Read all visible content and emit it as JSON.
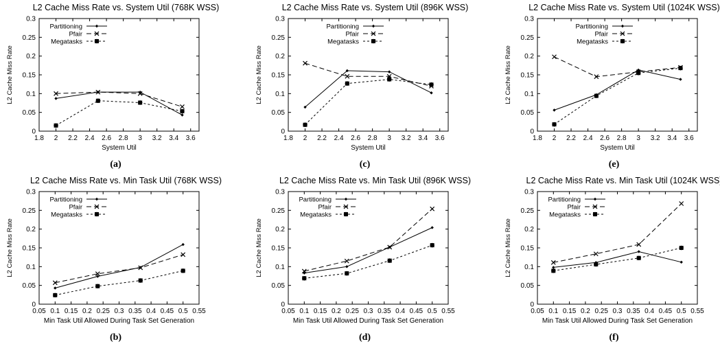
{
  "chart_data": [
    {
      "type": "line",
      "title": "L2 Cache Miss Rate vs. System Util (768K WSS)",
      "caption": "(a)",
      "xlabel": "System Util",
      "ylabel": "L2 Cache Miss Rate",
      "xlim": [
        1.8,
        3.7
      ],
      "ylim": [
        0,
        0.3
      ],
      "xticks": [
        "1.8",
        "2",
        "2.2",
        "2.4",
        "2.6",
        "2.8",
        "3",
        "3.2",
        "3.4",
        "3.6"
      ],
      "yticks": [
        "0",
        "0.05",
        "0.1",
        "0.15",
        "0.2",
        "0.25",
        "0.3"
      ],
      "x": [
        2,
        2.5,
        3,
        3.5
      ],
      "legend": "top-left",
      "series": [
        {
          "name": "Partitioning",
          "values": [
            0.087,
            0.104,
            0.104,
            0.043
          ]
        },
        {
          "name": "Pfair",
          "values": [
            0.1,
            0.104,
            0.1,
            0.065
          ]
        },
        {
          "name": "Megatasks",
          "values": [
            0.015,
            0.081,
            0.076,
            0.053
          ]
        }
      ]
    },
    {
      "type": "line",
      "title": "L2 Cache Miss Rate vs. System Util (896K WSS)",
      "caption": "(c)",
      "xlabel": "System Util",
      "ylabel": "L2 Cache Miss Rate",
      "xlim": [
        1.8,
        3.7
      ],
      "ylim": [
        0,
        0.3
      ],
      "xticks": [
        "1.8",
        "2",
        "2.2",
        "2.4",
        "2.6",
        "2.8",
        "3",
        "3.2",
        "3.4",
        "3.6"
      ],
      "yticks": [
        "0",
        "0.05",
        "0.1",
        "0.15",
        "0.2",
        "0.25",
        "0.3"
      ],
      "x": [
        2,
        2.5,
        3,
        3.5
      ],
      "legend": "top-right",
      "series": [
        {
          "name": "Partitioning",
          "values": [
            0.064,
            0.161,
            0.158,
            0.102
          ]
        },
        {
          "name": "Pfair",
          "values": [
            0.181,
            0.146,
            0.146,
            0.12
          ]
        },
        {
          "name": "Megatasks",
          "values": [
            0.017,
            0.127,
            0.138,
            0.124
          ]
        }
      ]
    },
    {
      "type": "line",
      "title": "L2 Cache Miss Rate vs. System Util (1024K WSS)",
      "caption": "(e)",
      "xlabel": "System Util",
      "ylabel": "L2 Cache Miss Rate",
      "xlim": [
        1.8,
        3.7
      ],
      "ylim": [
        0,
        0.3
      ],
      "xticks": [
        "1.8",
        "2",
        "2.2",
        "2.4",
        "2.6",
        "2.8",
        "3",
        "3.2",
        "3.4",
        "3.6"
      ],
      "yticks": [
        "0",
        "0.05",
        "0.1",
        "0.15",
        "0.2",
        "0.25",
        "0.3"
      ],
      "x": [
        2,
        2.5,
        3,
        3.5
      ],
      "legend": "top-right",
      "series": [
        {
          "name": "Partitioning",
          "values": [
            0.056,
            0.097,
            0.163,
            0.138
          ]
        },
        {
          "name": "Pfair",
          "values": [
            0.198,
            0.145,
            0.158,
            0.17
          ]
        },
        {
          "name": "Megatasks",
          "values": [
            0.018,
            0.094,
            0.155,
            0.168
          ]
        }
      ]
    },
    {
      "type": "line",
      "title": "L2 Cache Miss Rate vs. Min Task Util (768K WSS)",
      "caption": "(b)",
      "xlabel": "Min Task Util Allowed During Task Set Generation",
      "ylabel": "L2 Cache Miss Rate",
      "xlim": [
        0.05,
        0.55
      ],
      "ylim": [
        0,
        0.3
      ],
      "xticks": [
        "0.05",
        "0.1",
        "0.15",
        "0.2",
        "0.25",
        "0.3",
        "0.35",
        "0.4",
        "0.45",
        "0.5",
        "0.55"
      ],
      "yticks": [
        "0",
        "0.05",
        "0.1",
        "0.15",
        "0.2",
        "0.25",
        "0.3"
      ],
      "x": [
        0.1,
        0.233,
        0.367,
        0.5
      ],
      "legend": "top-left",
      "series": [
        {
          "name": "Partitioning",
          "values": [
            0.043,
            0.074,
            0.098,
            0.159
          ]
        },
        {
          "name": "Pfair",
          "values": [
            0.057,
            0.081,
            0.097,
            0.132
          ]
        },
        {
          "name": "Megatasks",
          "values": [
            0.024,
            0.048,
            0.063,
            0.089
          ]
        }
      ]
    },
    {
      "type": "line",
      "title": "L2 Cache Miss Rate vs. Min Task Util (896K WSS)",
      "caption": "(d)",
      "xlabel": "Min Task Util Allowed During Task Set Generation",
      "ylabel": "L2 Cache Miss Rate",
      "xlim": [
        0.05,
        0.55
      ],
      "ylim": [
        0,
        0.3
      ],
      "xticks": [
        "0.05",
        "0.1",
        "0.15",
        "0.2",
        "0.25",
        "0.3",
        "0.35",
        "0.4",
        "0.45",
        "0.5",
        "0.55"
      ],
      "yticks": [
        "0",
        "0.05",
        "0.1",
        "0.15",
        "0.2",
        "0.25",
        "0.3"
      ],
      "x": [
        0.1,
        0.233,
        0.367,
        0.5
      ],
      "legend": "top-left",
      "series": [
        {
          "name": "Partitioning",
          "values": [
            0.083,
            0.1,
            0.152,
            0.204
          ]
        },
        {
          "name": "Pfair",
          "values": [
            0.088,
            0.115,
            0.152,
            0.254
          ]
        },
        {
          "name": "Megatasks",
          "values": [
            0.069,
            0.082,
            0.116,
            0.157
          ]
        }
      ]
    },
    {
      "type": "line",
      "title": "L2 Cache Miss Rate vs. Min Task Util (1024K WSS)",
      "caption": "(f)",
      "xlabel": "Min Task Util Allowed During Task Set Generation",
      "ylabel": "L2 Cache Miss Rate",
      "xlim": [
        0.05,
        0.55
      ],
      "ylim": [
        0,
        0.3
      ],
      "xticks": [
        "0.05",
        "0.1",
        "0.15",
        "0.2",
        "0.25",
        "0.3",
        "0.35",
        "0.4",
        "0.45",
        "0.5",
        "0.55"
      ],
      "yticks": [
        "0",
        "0.05",
        "0.1",
        "0.15",
        "0.2",
        "0.25",
        "0.3"
      ],
      "x": [
        0.1,
        0.233,
        0.367,
        0.5
      ],
      "legend": "top-left",
      "series": [
        {
          "name": "Partitioning",
          "values": [
            0.098,
            0.111,
            0.14,
            0.112
          ]
        },
        {
          "name": "Pfair",
          "values": [
            0.111,
            0.134,
            0.159,
            0.268
          ]
        },
        {
          "name": "Megatasks",
          "values": [
            0.089,
            0.106,
            0.123,
            0.15
          ]
        }
      ]
    }
  ]
}
